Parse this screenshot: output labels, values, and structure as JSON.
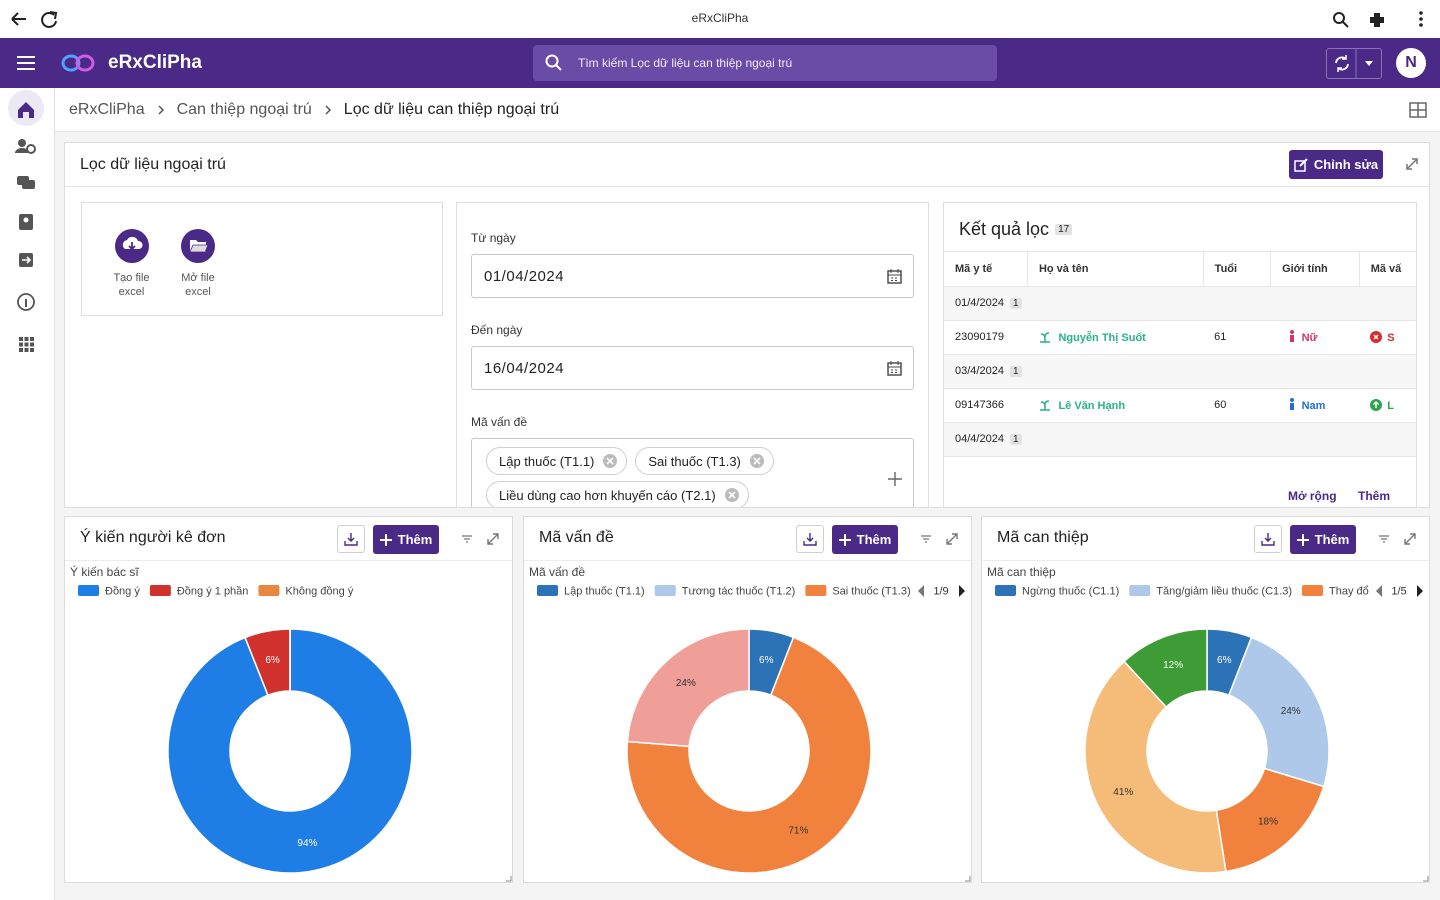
{
  "browser": {
    "title": "eRxCliPha"
  },
  "app": {
    "name": "eRxCliPha",
    "search": "Tìm kiếm Lọc dữ liệu can thiệp ngoại trú",
    "avatar": "N"
  },
  "breadcrumb": [
    "eRxCliPha",
    "Can thiệp ngoại trú",
    "Lọc dữ liệu can thiệp ngoại trú"
  ],
  "filter": {
    "title": "Lọc dữ liệu ngoại trú",
    "edit": "Chỉnh sửa",
    "files": [
      "Tạo file excel",
      "Mở file excel"
    ],
    "from_label": "Từ ngày",
    "from": "01/04/2024",
    "to_label": "Đến ngày",
    "to": "16/04/2024",
    "problem_label": "Mã vấn đề",
    "problems": [
      "Lập thuốc (T1.1)",
      "Sai thuốc (T1.3)",
      "Liều dùng cao hơn khuyến cáo (T2.1)"
    ]
  },
  "results": {
    "title": "Kết quả lọc",
    "count": 17,
    "columns": [
      "Mã y tế",
      "Họ và tên",
      "Tuổi",
      "Giới tính",
      "Mã vấ"
    ],
    "groups": [
      {
        "date": "01/4/2024",
        "count": 1,
        "rows": [
          [
            "23090179",
            "Nguyễn Thị Suốt",
            61,
            "Nữ",
            "S"
          ]
        ]
      },
      {
        "date": "03/4/2024",
        "count": 1,
        "rows": [
          [
            "09147366",
            "Lê Văn Hạnh",
            60,
            "Nam",
            "L"
          ]
        ]
      },
      {
        "date": "04/4/2024",
        "count": 1,
        "rows": []
      }
    ],
    "expand": "Mở rộng",
    "more": "Thêm"
  },
  "chart_data": [
    {
      "type": "donut",
      "title": "Ý kiến người kê đơn",
      "add_button": "Thêm",
      "legend_title": "Ý kiến bác sĩ",
      "categories": [
        "Đồng ý",
        "Đồng ý 1 phần",
        "Không đồng ý"
      ],
      "values": [
        94,
        6,
        0
      ],
      "value_labels": [
        "94%",
        "6%",
        null
      ],
      "colors": [
        "#1f7de6",
        "#d2322d",
        "#e8873f"
      ]
    },
    {
      "type": "donut",
      "title": "Mã vấn đề",
      "add_button": "Thêm",
      "legend_title": "Mã vấn đề",
      "legend_page": "1/9",
      "categories": [
        "Lập thuốc (T1.1)",
        "Tương tác thuốc (T1.2)",
        "Sai thuốc (T1.3)",
        null
      ],
      "values": [
        6,
        0,
        71,
        24
      ],
      "value_labels": [
        "6%",
        null,
        "71%",
        "24%"
      ],
      "colors": [
        "#2c72b6",
        "#aec8ea",
        "#f0823e",
        "#f09f98"
      ]
    },
    {
      "type": "donut",
      "title": "Mã can thiệp",
      "add_button": "Thêm",
      "legend_title": "Mã can thiệp",
      "legend_page": "1/5",
      "categories": [
        "Ngừng thuốc (C1.1)",
        "Tăng/giảm liều thuốc (C1.3)",
        "Thay đổi",
        null,
        null
      ],
      "values": [
        6,
        24,
        18,
        41,
        12
      ],
      "value_labels": [
        "6%",
        "24%",
        "18%",
        "41%",
        "12%"
      ],
      "colors": [
        "#2c72b6",
        "#aec8ea",
        "#f0823e",
        "#f5bb78",
        "#3e9c36"
      ]
    }
  ]
}
